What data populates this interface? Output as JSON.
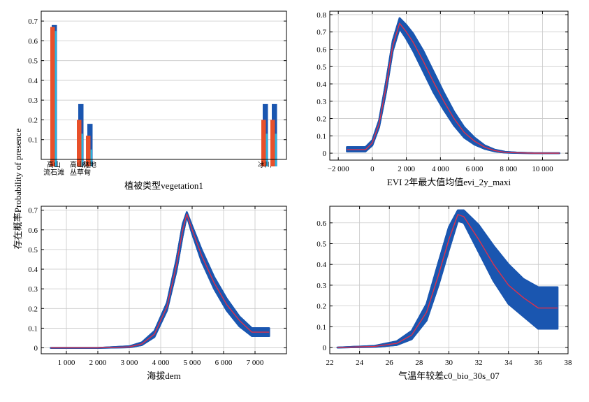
{
  "figure": {
    "ylabel": "存在概率Probability of presence"
  },
  "chart_data": [
    {
      "type": "bar",
      "xlabel": "植被类型vegetation1",
      "ylim": [
        0,
        0.75
      ],
      "yticks": [
        0.1,
        0.2,
        0.3,
        0.4,
        0.5,
        0.6,
        0.7
      ],
      "ytick_labels": [
        "0.1",
        "0.2",
        "0.3",
        "0.4",
        "0.5",
        "0.6",
        "0.7"
      ],
      "grid": true,
      "categories": [
        {
          "label": [
            "高山",
            "流石滩"
          ],
          "upper": 0.68,
          "mean": 0.67,
          "lower": 0.65
        },
        {
          "label": [
            "高山灌",
            "丛草甸"
          ],
          "upper": 0.28,
          "mean": 0.2,
          "lower": 0.13
        },
        {
          "label": [
            "林地"
          ],
          "upper": 0.18,
          "mean": 0.12,
          "lower": 0.05
        },
        {
          "label": [
            "冰川"
          ],
          "upper": 0.28,
          "mean": 0.2,
          "lower": 0.13
        },
        {
          "label": [
            ""
          ],
          "upper": 0.28,
          "mean": 0.2,
          "lower": 0.13
        }
      ],
      "colors": {
        "upper": "#1a56b0",
        "mean": "#e8502a",
        "lower": "#28b4e0"
      }
    },
    {
      "type": "line",
      "xlabel": "EVI 2年最大值均值evi_2y_maxi",
      "xlim": [
        -2500,
        11500
      ],
      "ylim": [
        -0.04,
        0.82
      ],
      "xticks": [
        -2000,
        0,
        2000,
        4000,
        6000,
        8000,
        10000
      ],
      "xtick_labels": [
        "−2 000",
        "0",
        "2 000",
        "4 000",
        "6 000",
        "8 000",
        "10 000"
      ],
      "yticks": [
        0,
        0.1,
        0.2,
        0.3,
        0.4,
        0.5,
        0.6,
        0.7,
        0.8
      ],
      "ytick_labels": [
        "0",
        "0.1",
        "0.2",
        "0.3",
        "0.4",
        "0.5",
        "0.6",
        "0.7",
        "0.8"
      ],
      "grid": true,
      "series": [
        {
          "role": "mean",
          "color": "#e0304a",
          "x": [
            -1500,
            -400,
            0,
            400,
            800,
            1200,
            1600,
            2000,
            2400,
            3000,
            3600,
            4200,
            4800,
            5400,
            6000,
            6600,
            7200,
            7800,
            8500,
            9500,
            11000
          ],
          "y": [
            0.02,
            0.02,
            0.06,
            0.17,
            0.38,
            0.62,
            0.75,
            0.7,
            0.64,
            0.53,
            0.41,
            0.3,
            0.2,
            0.12,
            0.07,
            0.035,
            0.015,
            0.005,
            0.002,
            0.0,
            0.0
          ]
        },
        {
          "role": "upper",
          "color": "#1a56b0",
          "x": [
            -1500,
            -400,
            0,
            400,
            800,
            1200,
            1600,
            2000,
            2400,
            3000,
            3600,
            4200,
            4800,
            5400,
            6000,
            6600,
            7200,
            7800,
            8500,
            9500,
            11000
          ],
          "y": [
            0.035,
            0.035,
            0.075,
            0.19,
            0.41,
            0.65,
            0.78,
            0.74,
            0.69,
            0.59,
            0.47,
            0.35,
            0.24,
            0.15,
            0.09,
            0.045,
            0.02,
            0.008,
            0.003,
            0.0,
            0.0
          ]
        },
        {
          "role": "lower",
          "color": "#1a56b0",
          "x": [
            -1500,
            -400,
            0,
            400,
            800,
            1200,
            1600,
            2000,
            2400,
            3000,
            3600,
            4200,
            4800,
            5400,
            6000,
            6600,
            7200,
            7800,
            8500,
            9500,
            11000
          ],
          "y": [
            0.01,
            0.01,
            0.045,
            0.15,
            0.35,
            0.59,
            0.72,
            0.66,
            0.59,
            0.47,
            0.35,
            0.25,
            0.16,
            0.09,
            0.05,
            0.025,
            0.01,
            0.003,
            0.001,
            0.0,
            0.0
          ]
        }
      ]
    },
    {
      "type": "line",
      "xlabel": "海拔dem",
      "xlim": [
        200,
        8000
      ],
      "ylim": [
        -0.03,
        0.72
      ],
      "xticks": [
        1000,
        2000,
        3000,
        4000,
        5000,
        6000,
        7000
      ],
      "xtick_labels": [
        "1 000",
        "2 000",
        "3 000",
        "4 000",
        "5 000",
        "6 000",
        "7 000"
      ],
      "yticks": [
        0,
        0.1,
        0.2,
        0.3,
        0.4,
        0.5,
        0.6,
        0.7
      ],
      "ytick_labels": [
        "0",
        "0.1",
        "0.2",
        "0.3",
        "0.4",
        "0.5",
        "0.6",
        "0.7"
      ],
      "grid": true,
      "series": [
        {
          "role": "mean",
          "color": "#e0304a",
          "x": [
            500,
            2000,
            3000,
            3400,
            3800,
            4200,
            4500,
            4700,
            4830,
            5000,
            5300,
            5700,
            6100,
            6500,
            6900,
            7450
          ],
          "y": [
            0.0,
            0.0,
            0.005,
            0.02,
            0.07,
            0.21,
            0.42,
            0.6,
            0.68,
            0.6,
            0.47,
            0.33,
            0.22,
            0.14,
            0.08,
            0.08
          ]
        },
        {
          "role": "upper",
          "color": "#1a56b0",
          "x": [
            500,
            2000,
            3000,
            3400,
            3800,
            4200,
            4500,
            4700,
            4830,
            5000,
            5300,
            5700,
            6100,
            6500,
            6900,
            7450
          ],
          "y": [
            0.0,
            0.0,
            0.008,
            0.028,
            0.085,
            0.23,
            0.45,
            0.63,
            0.69,
            0.62,
            0.5,
            0.36,
            0.25,
            0.16,
            0.1,
            0.1
          ]
        },
        {
          "role": "lower",
          "color": "#1a56b0",
          "x": [
            500,
            2000,
            3000,
            3400,
            3800,
            4200,
            4500,
            4700,
            4830,
            5000,
            5300,
            5700,
            6100,
            6500,
            6900,
            7450
          ],
          "y": [
            0.0,
            0.0,
            0.003,
            0.014,
            0.055,
            0.19,
            0.39,
            0.57,
            0.67,
            0.58,
            0.44,
            0.3,
            0.19,
            0.11,
            0.06,
            0.06
          ]
        }
      ]
    },
    {
      "type": "line",
      "xlabel": "气温年较差c0_bio_30s_07",
      "xlim": [
        22,
        38
      ],
      "ylim": [
        -0.03,
        0.68
      ],
      "xticks": [
        22,
        24,
        26,
        28,
        30,
        32,
        34,
        36,
        38
      ],
      "xtick_labels": [
        "22",
        "24",
        "26",
        "28",
        "30",
        "32",
        "34",
        "36",
        "38"
      ],
      "yticks": [
        0,
        0.1,
        0.2,
        0.3,
        0.4,
        0.5,
        0.6
      ],
      "ytick_labels": [
        "0",
        "0.1",
        "0.2",
        "0.3",
        "0.4",
        "0.5",
        "0.6"
      ],
      "grid": true,
      "series": [
        {
          "role": "mean",
          "color": "#e0304a",
          "x": [
            22.5,
            25,
            26.5,
            27.5,
            28.5,
            29.3,
            30,
            30.6,
            31,
            32,
            33,
            34,
            35,
            36,
            37.3
          ],
          "y": [
            0.0,
            0.005,
            0.02,
            0.06,
            0.17,
            0.35,
            0.52,
            0.64,
            0.63,
            0.52,
            0.4,
            0.3,
            0.24,
            0.19,
            0.19
          ]
        },
        {
          "role": "upper",
          "color": "#1a56b0",
          "x": [
            22.5,
            25,
            26.5,
            27.5,
            28.5,
            29.3,
            30,
            30.6,
            31,
            32,
            33,
            34,
            35,
            36,
            37.3
          ],
          "y": [
            0.0,
            0.008,
            0.03,
            0.08,
            0.21,
            0.41,
            0.58,
            0.66,
            0.66,
            0.59,
            0.49,
            0.4,
            0.33,
            0.29,
            0.29
          ]
        },
        {
          "role": "lower",
          "color": "#1a56b0",
          "x": [
            22.5,
            25,
            26.5,
            27.5,
            28.5,
            29.3,
            30,
            30.6,
            31,
            32,
            33,
            34,
            35,
            36,
            37.3
          ],
          "y": [
            0.0,
            0.003,
            0.012,
            0.04,
            0.13,
            0.3,
            0.47,
            0.61,
            0.6,
            0.46,
            0.32,
            0.21,
            0.15,
            0.09,
            0.09
          ]
        }
      ]
    }
  ]
}
